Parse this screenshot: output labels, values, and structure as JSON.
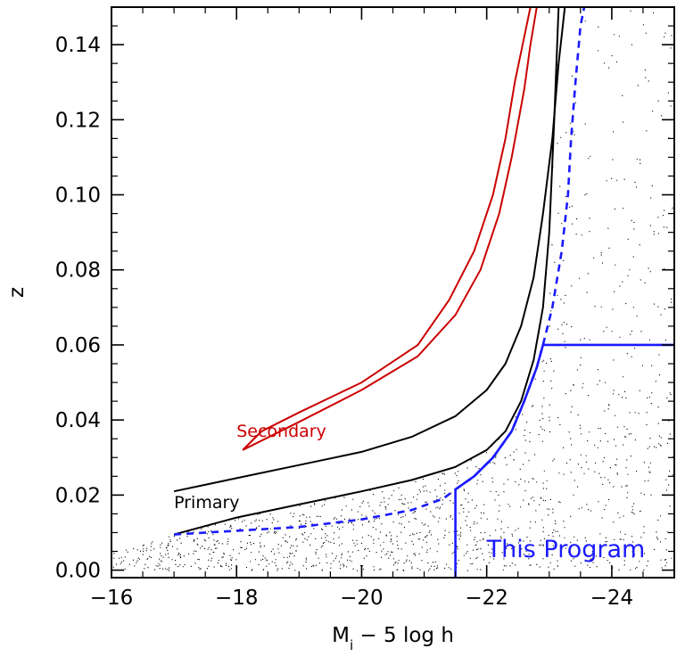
{
  "chart_data": {
    "type": "line",
    "title": "",
    "xlabel": "M_i − 5 log h",
    "xlabel_main": "M",
    "xlabel_sub": "i",
    "xlabel_rest": " − 5 log h",
    "ylabel": "z",
    "xlim": [
      -16,
      -25
    ],
    "ylim": [
      -0.002,
      0.15
    ],
    "x_reversed": true,
    "x_ticks": [
      -16,
      -18,
      -20,
      -22,
      -24
    ],
    "x_tick_labels": [
      "−16",
      "−18",
      "−20",
      "−22",
      "−24"
    ],
    "y_ticks": [
      0.0,
      0.02,
      0.04,
      0.06,
      0.08,
      0.1,
      0.12,
      0.14
    ],
    "y_tick_labels": [
      "0.00",
      "0.02",
      "0.04",
      "0.06",
      "0.08",
      "0.10",
      "0.12",
      "0.14"
    ],
    "grid": false,
    "series": [
      {
        "name": "Primary",
        "color": "#000000",
        "style": "solid",
        "x": [
          -17.0,
          -18.0,
          -19.0,
          -20.0,
          -20.8,
          -21.5,
          -22.0,
          -22.3,
          -22.55,
          -22.75,
          -22.9,
          -23.0,
          -23.08,
          -23.15
        ],
        "y": [
          0.0095,
          0.014,
          0.0175,
          0.021,
          0.024,
          0.0275,
          0.032,
          0.037,
          0.045,
          0.056,
          0.07,
          0.09,
          0.12,
          0.15
        ]
      },
      {
        "name": "Primary",
        "color": "#000000",
        "style": "solid",
        "x": [
          -17.0,
          -18.0,
          -19.0,
          -20.0,
          -20.8,
          -21.5,
          -22.0,
          -22.3,
          -22.55,
          -22.75,
          -22.9,
          -23.05,
          -23.15,
          -23.25
        ],
        "y": [
          0.021,
          0.0245,
          0.028,
          0.0315,
          0.0355,
          0.041,
          0.048,
          0.055,
          0.065,
          0.078,
          0.095,
          0.115,
          0.135,
          0.15
        ]
      },
      {
        "name": "Secondary",
        "color": "#cc0000",
        "style": "solid",
        "x": [
          -18.1,
          -19.0,
          -20.0,
          -20.9,
          -21.5,
          -21.9,
          -22.2,
          -22.4,
          -22.6,
          -22.7,
          -22.8
        ],
        "y": [
          0.032,
          0.0395,
          0.048,
          0.057,
          0.068,
          0.08,
          0.095,
          0.11,
          0.128,
          0.14,
          0.15
        ]
      },
      {
        "name": "Secondary",
        "color": "#cc0000",
        "style": "solid",
        "x": [
          -18.1,
          -18.4,
          -19.0,
          -20.0,
          -20.9,
          -21.4,
          -21.8,
          -22.1,
          -22.3,
          -22.45,
          -22.6,
          -22.7
        ],
        "y": [
          0.032,
          0.037,
          0.042,
          0.05,
          0.06,
          0.072,
          0.085,
          0.1,
          0.115,
          0.13,
          0.142,
          0.15
        ]
      },
      {
        "name": "This Program",
        "color": "#1a1aff",
        "style": "dashed",
        "x": [
          -17.0,
          -18.0,
          -19.0,
          -20.0,
          -20.8,
          -21.3,
          -21.5,
          -21.8,
          -22.1,
          -22.4,
          -22.6,
          -22.8,
          -22.9,
          -23.05,
          -23.2,
          -23.3,
          -23.35,
          -23.42,
          -23.5,
          -23.56
        ],
        "y": [
          0.0095,
          0.0105,
          0.0115,
          0.0135,
          0.016,
          0.019,
          0.0215,
          0.025,
          0.03,
          0.037,
          0.045,
          0.054,
          0.06,
          0.07,
          0.085,
          0.1,
          0.115,
          0.13,
          0.145,
          0.15
        ]
      },
      {
        "name": "This Program",
        "color": "#1a1aff",
        "style": "solid",
        "x": [
          -21.5,
          -21.5,
          -21.8,
          -22.1,
          -22.4,
          -22.6,
          -22.8,
          -22.9,
          -25.0
        ],
        "y": [
          -0.002,
          0.0215,
          0.025,
          0.03,
          0.037,
          0.045,
          0.054,
          0.06,
          0.06
        ]
      }
    ],
    "scatter": {
      "color": "#000000",
      "description_none": "",
      "seed": 7
    },
    "annotations": [
      {
        "text": "Primary",
        "x": -17.0,
        "y": 0.0165,
        "color": "#000000"
      },
      {
        "text": "Secondary",
        "x": -18.0,
        "y": 0.0355,
        "color": "#cc0000"
      },
      {
        "text": "This Program",
        "x": -22.0,
        "y": 0.0035,
        "color": "#1a1aff"
      }
    ]
  }
}
